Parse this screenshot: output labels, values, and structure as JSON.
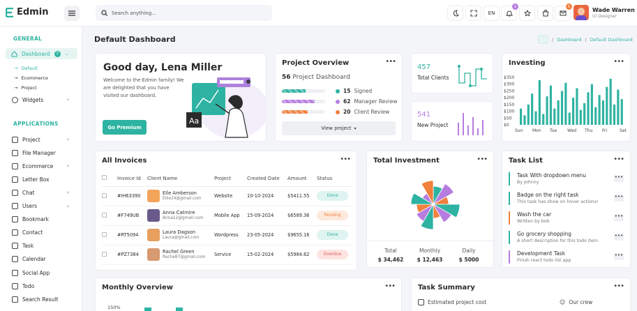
{
  "header": {
    "logo": "Edmin",
    "search_placeholder": "Search anything...",
    "lang": "EN",
    "notif_count": "3",
    "msg_count": "5",
    "user_name": "Wade Warren",
    "user_role": "UI Designer"
  },
  "colors": {
    "accent": "#2eb3a2",
    "orange": "#f0803c",
    "purple": "#b77ce0"
  },
  "sidebar": {
    "general": "GENERAL",
    "dashboard": "Dashboard",
    "dashboard_badge": "3",
    "subs": [
      "Default",
      "Ecommerce",
      "Project"
    ],
    "widgets": "Widgets",
    "applications": "APPLICATIONS",
    "apps": [
      "Project",
      "File Manager",
      "Ecommerce",
      "Letter Box",
      "Chat",
      "Users",
      "Bookmark",
      "Contact",
      "Task",
      "Calendar",
      "Social App",
      "Todo",
      "Search Result"
    ]
  },
  "page": {
    "title": "Default Dashboard",
    "crumb1": "Dashboard",
    "crumb2": "Default Dashboard"
  },
  "welcome": {
    "greeting": "Good day, Lena Miller",
    "text": "Welcome to the Edmin family! We are delighted that you have visited our dashboard.",
    "button": "Go Premium"
  },
  "project": {
    "title": "Project Overview",
    "count": "56",
    "count_label": "Project Dashboard",
    "rows": [
      {
        "num": "15",
        "label": "Signed",
        "color": "#2eb3a2",
        "progress": 0.55
      },
      {
        "num": "62",
        "label": "Manager Review",
        "color": "#b77ce0",
        "progress": 0.75
      },
      {
        "num": "20",
        "label": "Client Review",
        "color": "#f0803c",
        "progress": 0.6
      }
    ],
    "button": "View project"
  },
  "stats": {
    "clients_value": "457",
    "clients_label": "Total Clients",
    "new_value": "541",
    "new_label": "New Project"
  },
  "investing": {
    "title": "Investing",
    "chart_data": {
      "type": "bar",
      "ylabels": [
        "$350",
        "$300",
        "$250",
        "$200",
        "$150",
        "$100",
        "$50",
        "$0"
      ],
      "xlabels": [
        "Sun",
        "Mon",
        "Tue",
        "Wed",
        "Thu",
        "Fri",
        "Sat"
      ],
      "ylim": [
        0,
        350
      ],
      "values": [
        120,
        70,
        150,
        230,
        100,
        330,
        80,
        210,
        290,
        120,
        180,
        250,
        310,
        90,
        200,
        270,
        110,
        160,
        240,
        300,
        130,
        220,
        180,
        280,
        340,
        150,
        260,
        190
      ]
    }
  },
  "invoices": {
    "title": "All Invoices",
    "headers": [
      "Invoice Id",
      "Client Name",
      "Project",
      "Created Date",
      "Amount",
      "Status"
    ],
    "rows": [
      {
        "id": "#IH63390",
        "name": "Elle Amberson",
        "email": "Ellie34@gmail.com",
        "project": "Website",
        "date": "10-10-2024",
        "amount": "$5411.55",
        "status": "Done"
      },
      {
        "id": "#F749UB",
        "name": "Anna Catmire",
        "email": "Anna12@gmail.com",
        "project": "Mobile App",
        "date": "15-09-2024",
        "amount": "$6589.36",
        "status": "Pending"
      },
      {
        "id": "#RT5094",
        "name": "Laura Dagson",
        "email": "Laura@gmail.com",
        "project": "Wordpress",
        "date": "23-05-2024",
        "amount": "$9655.16",
        "status": "Done"
      },
      {
        "id": "#PZ7384",
        "name": "Rachel Green",
        "email": "Rache87@gmail.com",
        "project": "Service",
        "date": "15-02-2024",
        "amount": "$5984.62",
        "status": "Overdue"
      }
    ]
  },
  "investment": {
    "title": "Total Investment",
    "stats": [
      {
        "label": "Total",
        "value": "$ 34,462"
      },
      {
        "label": "Monthly",
        "value": "$ 12,463"
      },
      {
        "label": "Daily",
        "value": "$ 5000"
      }
    ]
  },
  "tasks": {
    "title": "Task List",
    "items": [
      {
        "title": "Task With dropdown menu",
        "sub": "By Johnny",
        "color": "#2eb3a2"
      },
      {
        "title": "Badge on the right task",
        "sub": "This task has show on hover actions!",
        "color": "#2eb3a2"
      },
      {
        "title": "Wash the car",
        "sub": "Written by bob",
        "color": "#f0803c"
      },
      {
        "title": "Go grocery shopping",
        "sub": "A short description for this todo item",
        "color": "#2eb3a2"
      },
      {
        "title": "Development Task",
        "sub": "Finish react todo list app",
        "color": "#b77ce0"
      }
    ]
  },
  "monthly": {
    "title": "Monthly Overview",
    "ytick": "150%"
  },
  "summary": {
    "title": "Task Summary",
    "item1": "Estimated project cost",
    "item2": "Our crew"
  }
}
